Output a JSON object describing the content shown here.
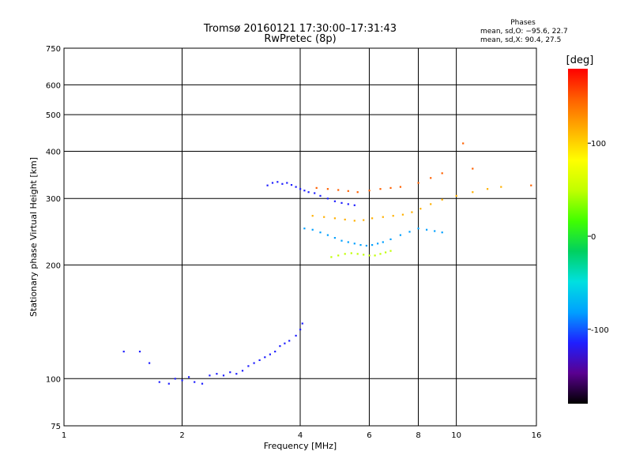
{
  "chart_data": {
    "type": "scatter",
    "title_line1": "Tromsø 20160121 17:30:00–17:31:43",
    "title_line2": "RwPretec (8p)",
    "xlabel": "Frequency [MHz]",
    "ylabel": "Stationary phase Virtual Height [km]",
    "x_scale": "log",
    "y_scale": "log",
    "xlim": [
      1,
      16
    ],
    "ylim": [
      75,
      750
    ],
    "x_ticks": [
      1,
      2,
      4,
      6,
      8,
      10,
      16
    ],
    "y_ticks": [
      75,
      100,
      200,
      300,
      400,
      500,
      600,
      750
    ],
    "grid": true,
    "phases": {
      "heading": "Phases",
      "line_o": "mean, sd,O: −95.6, 22.7",
      "line_x": "mean, sd,X:  90.4, 27.5"
    },
    "colorbar": {
      "label": "[deg]",
      "range": [
        -180,
        180
      ],
      "ticks": [
        100,
        0,
        -100
      ],
      "colors": [
        "#000000",
        "#5a0090",
        "#1f1fff",
        "#00a0ff",
        "#00e0e0",
        "#00d060",
        "#40ff00",
        "#c0ff00",
        "#ffff00",
        "#ffb000",
        "#ff6000",
        "#ff0000"
      ]
    },
    "series": [
      {
        "values": [
          [
            1.42,
            118
          ],
          [
            1.56,
            118
          ],
          [
            1.65,
            110
          ],
          [
            1.75,
            98
          ],
          [
            1.85,
            97
          ],
          [
            1.92,
            100
          ],
          [
            2.0,
            99
          ],
          [
            2.08,
            101
          ],
          [
            2.15,
            98
          ],
          [
            2.25,
            97
          ],
          [
            2.35,
            102
          ],
          [
            2.45,
            103
          ],
          [
            2.55,
            102
          ],
          [
            2.65,
            104
          ],
          [
            2.75,
            103
          ],
          [
            2.85,
            105
          ],
          [
            2.95,
            108
          ],
          [
            3.05,
            110
          ],
          [
            3.15,
            112
          ],
          [
            3.25,
            114
          ],
          [
            3.35,
            116
          ],
          [
            3.45,
            118
          ],
          [
            3.55,
            122
          ],
          [
            3.65,
            124
          ],
          [
            3.75,
            126
          ],
          [
            3.9,
            130
          ],
          [
            4.0,
            135
          ],
          [
            4.05,
            140
          ]
        ],
        "phase": -100
      },
      {
        "values": [
          [
            3.3,
            325
          ],
          [
            3.4,
            330
          ],
          [
            3.5,
            332
          ],
          [
            3.6,
            328
          ],
          [
            3.7,
            330
          ],
          [
            3.8,
            326
          ],
          [
            3.9,
            322
          ],
          [
            4.0,
            318
          ],
          [
            4.1,
            315
          ],
          [
            4.2,
            312
          ],
          [
            4.35,
            310
          ],
          [
            4.5,
            305
          ],
          [
            4.7,
            300
          ],
          [
            4.9,
            295
          ],
          [
            5.1,
            292
          ],
          [
            5.3,
            290
          ],
          [
            5.5,
            288
          ]
        ],
        "phase": -110
      },
      {
        "values": [
          [
            4.1,
            250
          ],
          [
            4.3,
            248
          ],
          [
            4.5,
            244
          ],
          [
            4.7,
            240
          ],
          [
            4.9,
            236
          ],
          [
            5.1,
            232
          ],
          [
            5.3,
            230
          ],
          [
            5.5,
            228
          ],
          [
            5.7,
            226
          ],
          [
            5.9,
            225
          ],
          [
            6.1,
            226
          ],
          [
            6.3,
            228
          ],
          [
            6.5,
            230
          ],
          [
            6.8,
            234
          ],
          [
            7.2,
            240
          ],
          [
            7.6,
            245
          ],
          [
            8.0,
            250
          ],
          [
            8.4,
            248
          ],
          [
            8.8,
            246
          ],
          [
            9.2,
            244
          ]
        ],
        "phase": -95
      },
      {
        "values": [
          [
            4.8,
            210
          ],
          [
            5.0,
            212
          ],
          [
            5.2,
            214
          ],
          [
            5.4,
            215
          ],
          [
            5.6,
            214
          ],
          [
            5.8,
            213
          ],
          [
            6.0,
            212
          ],
          [
            6.2,
            212
          ],
          [
            6.4,
            214
          ],
          [
            6.6,
            216
          ],
          [
            6.8,
            218
          ]
        ],
        "phase": 60
      },
      {
        "values": [
          [
            4.3,
            270
          ],
          [
            4.6,
            268
          ],
          [
            4.9,
            266
          ],
          [
            5.2,
            264
          ],
          [
            5.5,
            262
          ],
          [
            5.8,
            263
          ],
          [
            6.1,
            266
          ],
          [
            6.5,
            268
          ],
          [
            6.9,
            270
          ],
          [
            7.3,
            272
          ],
          [
            7.7,
            276
          ],
          [
            8.1,
            282
          ],
          [
            8.6,
            290
          ],
          [
            9.2,
            298
          ],
          [
            10.0,
            305
          ],
          [
            11.0,
            312
          ],
          [
            12.0,
            318
          ],
          [
            13.0,
            322
          ]
        ],
        "phase": 100
      },
      {
        "values": [
          [
            4.4,
            320
          ],
          [
            4.7,
            318
          ],
          [
            5.0,
            316
          ],
          [
            5.3,
            314
          ],
          [
            5.6,
            312
          ],
          [
            6.0,
            315
          ],
          [
            6.4,
            318
          ],
          [
            6.8,
            320
          ],
          [
            7.2,
            322
          ],
          [
            8.0,
            330
          ],
          [
            8.6,
            340
          ],
          [
            9.2,
            350
          ],
          [
            10.4,
            420
          ],
          [
            11.0,
            360
          ],
          [
            15.5,
            325
          ]
        ],
        "phase": 150
      }
    ]
  }
}
